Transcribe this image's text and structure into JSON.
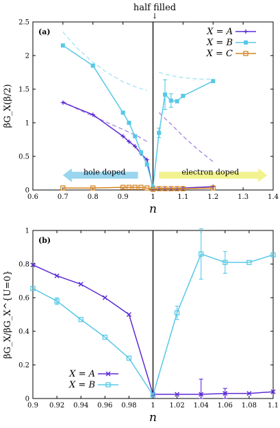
{
  "annotation": {
    "top_label": "half filled",
    "arrow": "↓"
  },
  "chart_data": [
    {
      "type": "line",
      "panel_label": "(a)",
      "xlabel": "n",
      "ylabel": "βG_X(β/2)",
      "xlim": [
        0.6,
        1.4
      ],
      "ylim": [
        0,
        2.5
      ],
      "xticks": [
        "0.6",
        "0.7",
        "0.8",
        "0.9",
        "1",
        "1.1",
        "1.2",
        "1.3",
        "1.4"
      ],
      "yticks": [
        "0",
        "0.5",
        "1",
        "1.5",
        "2",
        "2.5"
      ],
      "vline_x": 1.0,
      "legend_position": "top-right",
      "arrows": [
        {
          "label": "hole doped",
          "direction": "left",
          "color": "#87ceeb"
        },
        {
          "label": "electron doped",
          "direction": "right",
          "color": "#f0f07a"
        }
      ],
      "series": [
        {
          "name": "X = A",
          "color": "#5b2bd4",
          "marker": "plus",
          "x": [
            0.7,
            0.8,
            0.9,
            0.92,
            0.94,
            0.96,
            0.98,
            1.0,
            1.02,
            1.04,
            1.06,
            1.08,
            1.1,
            1.2
          ],
          "y": [
            1.3,
            1.12,
            0.8,
            0.72,
            0.65,
            0.54,
            0.45,
            0.01,
            0.02,
            0.02,
            0.02,
            0.02,
            0.03,
            0.05
          ]
        },
        {
          "name": "X = B",
          "color": "#56c8e6",
          "marker": "filled-square",
          "x": [
            0.7,
            0.8,
            0.9,
            0.92,
            0.94,
            0.96,
            0.98,
            1.0,
            1.02,
            1.04,
            1.06,
            1.08,
            1.1,
            1.2
          ],
          "y": [
            2.15,
            1.85,
            1.15,
            1.0,
            0.8,
            0.56,
            0.38,
            0.04,
            0.85,
            1.42,
            1.33,
            1.32,
            1.4,
            1.62
          ]
        },
        {
          "name": "X = C",
          "color": "#d4821f",
          "marker": "open-square",
          "x": [
            0.7,
            0.8,
            0.9,
            0.92,
            0.94,
            0.96,
            0.98,
            1.0,
            1.02,
            1.04,
            1.06,
            1.08,
            1.1,
            1.2
          ],
          "y": [
            0.03,
            0.03,
            0.04,
            0.04,
            0.04,
            0.04,
            0.03,
            0.01,
            0.02,
            0.02,
            0.02,
            0.02,
            0.02,
            0.03
          ]
        }
      ],
      "dashed_fits": [
        {
          "color": "#a8e4f2",
          "x": [
            0.7,
            0.75,
            0.8,
            0.85,
            0.9,
            0.95,
            0.98
          ],
          "y": [
            2.35,
            2.1,
            1.9,
            1.74,
            1.61,
            1.52,
            1.48
          ]
        },
        {
          "color": "#a8e4f2",
          "x": [
            1.02,
            1.06,
            1.1,
            1.15,
            1.2
          ],
          "y": [
            1.75,
            1.7,
            1.67,
            1.65,
            1.65
          ]
        },
        {
          "color": "#a98ae6",
          "x": [
            0.7,
            0.75,
            0.8,
            0.85,
            0.9,
            0.95,
            0.98
          ],
          "y": [
            1.32,
            1.2,
            1.1,
            1.0,
            0.9,
            0.8,
            0.72
          ]
        },
        {
          "color": "#a98ae6",
          "x": [
            1.02,
            1.06,
            1.1,
            1.15,
            1.2
          ],
          "y": [
            1.15,
            0.98,
            0.8,
            0.6,
            0.42
          ]
        }
      ],
      "error_bars": [
        {
          "x": 1.02,
          "y": 0.85,
          "err": 0.07,
          "color": "#56c8e6"
        },
        {
          "x": 1.04,
          "y": 1.42,
          "err": 0.22,
          "color": "#56c8e6"
        },
        {
          "x": 1.06,
          "y": 1.33,
          "err": 0.1,
          "color": "#56c8e6"
        }
      ]
    },
    {
      "type": "line",
      "panel_label": "(b)",
      "xlabel": "n",
      "ylabel": "βG_X/βG_X^{U=0}",
      "xlim": [
        0.9,
        1.1
      ],
      "ylim": [
        0,
        1.0
      ],
      "xticks": [
        "0.9",
        "0.92",
        "0.94",
        "0.96",
        "0.98",
        "1",
        "1.02",
        "1.04",
        "1.06",
        "1.08",
        "1.1"
      ],
      "yticks": [
        "0",
        "0.2",
        "0.4",
        "0.6",
        "0.8",
        "1"
      ],
      "vline_x": 1.0,
      "legend_position": "bottom-left",
      "series": [
        {
          "name": "X = A",
          "color": "#5b2bd4",
          "marker": "x",
          "x": [
            0.9,
            0.92,
            0.94,
            0.96,
            0.98,
            1.0,
            1.02,
            1.04,
            1.06,
            1.08,
            1.1
          ],
          "y": [
            0.795,
            0.73,
            0.68,
            0.6,
            0.5,
            0.025,
            0.025,
            0.025,
            0.03,
            0.03,
            0.04
          ]
        },
        {
          "name": "X = B",
          "color": "#56c8e6",
          "marker": "open-square",
          "x": [
            0.9,
            0.92,
            0.94,
            0.96,
            0.98,
            1.0,
            1.02,
            1.04,
            1.06,
            1.08,
            1.1
          ],
          "y": [
            0.655,
            0.58,
            0.47,
            0.365,
            0.24,
            0.02,
            0.51,
            0.86,
            0.81,
            0.81,
            0.855
          ]
        }
      ],
      "error_bars": [
        {
          "x": 0.92,
          "y": 0.58,
          "err": 0.02,
          "color": "#56c8e6"
        },
        {
          "x": 1.02,
          "y": 0.51,
          "err": 0.04,
          "color": "#56c8e6"
        },
        {
          "x": 1.04,
          "y": 0.86,
          "err": 0.15,
          "color": "#56c8e6"
        },
        {
          "x": 1.06,
          "y": 0.81,
          "err": 0.065,
          "color": "#56c8e6"
        },
        {
          "x": 1.04,
          "y": 0.025,
          "err": 0.09,
          "color": "#5b2bd4"
        },
        {
          "x": 1.06,
          "y": 0.03,
          "err": 0.03,
          "color": "#5b2bd4"
        }
      ]
    }
  ]
}
